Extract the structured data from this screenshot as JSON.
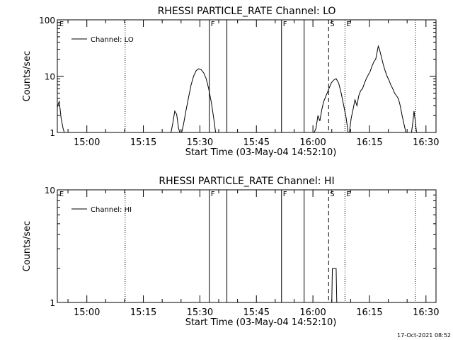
{
  "timestamp": "17-Oct-2021 08:52",
  "chart_data": [
    {
      "type": "line",
      "title": "RHESSI PARTICLE_RATE Channel: LO",
      "xlabel": "Start Time (03-May-04 14:52:10)",
      "ylabel": "Counts/sec",
      "y_scale": "log",
      "ylim": [
        1,
        100
      ],
      "y_ticks": [
        {
          "v": 1,
          "label": "1"
        },
        {
          "v": 10,
          "label": "10"
        },
        {
          "v": 100,
          "label": "100"
        }
      ],
      "xlim": [
        "14:52:10",
        "16:32:40"
      ],
      "x_ticks": [
        "15:00",
        "15:15",
        "15:30",
        "15:45",
        "16:00",
        "16:15",
        "16:30"
      ],
      "grid": false,
      "legend": {
        "position": "top-left",
        "entries": [
          "Channel: LO"
        ]
      },
      "markers": [
        {
          "time": "14:52:20",
          "label": "E",
          "style": "none"
        },
        {
          "time": "15:10:10",
          "label": "",
          "style": "dotted"
        },
        {
          "time": "15:32:30",
          "label": "F",
          "style": "solid"
        },
        {
          "time": "15:37:10",
          "label": "",
          "style": "solid"
        },
        {
          "time": "15:51:40",
          "label": "F",
          "style": "solid"
        },
        {
          "time": "15:57:40",
          "label": "",
          "style": "solid"
        },
        {
          "time": "16:04:10",
          "label": "S",
          "style": "dashed"
        },
        {
          "time": "16:08:30",
          "label": "E",
          "style": "dotted"
        },
        {
          "time": "16:27:10",
          "label": "",
          "style": "dotted"
        }
      ],
      "series": [
        {
          "name": "Channel: LO",
          "segments": [
            [
              [
                "14:52:10",
                2.8
              ],
              [
                "14:52:40",
                3.6
              ],
              [
                "14:53:10",
                1.8
              ],
              [
                "14:53:40",
                1.2
              ],
              [
                "14:54:00",
                1.0
              ]
            ],
            [
              [
                "15:22:20",
                1.0
              ],
              [
                "15:22:50",
                1.5
              ],
              [
                "15:23:20",
                2.4
              ],
              [
                "15:23:50",
                2.1
              ],
              [
                "15:24:20",
                1.2
              ],
              [
                "15:24:40",
                1.0
              ]
            ],
            [
              [
                "15:25:10",
                1.0
              ],
              [
                "15:25:40",
                1.4
              ],
              [
                "15:26:20",
                2.5
              ],
              [
                "15:27:00",
                4.2
              ],
              [
                "15:27:40",
                7.0
              ],
              [
                "15:28:20",
                10.0
              ],
              [
                "15:29:00",
                12.5
              ],
              [
                "15:29:40",
                13.5
              ],
              [
                "15:30:20",
                13.0
              ],
              [
                "15:31:00",
                11.5
              ],
              [
                "15:31:40",
                9.0
              ],
              [
                "15:32:20",
                6.0
              ],
              [
                "15:33:00",
                3.5
              ],
              [
                "15:33:40",
                1.8
              ],
              [
                "15:34:10",
                1.0
              ]
            ],
            [
              [
                "16:00:20",
                1.0
              ],
              [
                "16:00:50",
                1.2
              ],
              [
                "16:01:20",
                2.0
              ],
              [
                "16:01:50",
                1.6
              ],
              [
                "16:02:20",
                2.5
              ],
              [
                "16:02:50",
                3.5
              ],
              [
                "16:03:30",
                4.5
              ],
              [
                "16:04:10",
                5.8
              ],
              [
                "16:04:50",
                7.5
              ],
              [
                "16:05:30",
                8.5
              ],
              [
                "16:06:10",
                9.0
              ],
              [
                "16:06:50",
                7.5
              ],
              [
                "16:07:30",
                5.0
              ],
              [
                "16:08:10",
                3.0
              ],
              [
                "16:08:50",
                1.8
              ],
              [
                "16:09:20",
                1.0
              ]
            ],
            [
              [
                "16:09:40",
                1.0
              ],
              [
                "16:10:10",
                1.8
              ],
              [
                "16:10:40",
                2.6
              ],
              [
                "16:11:10",
                3.8
              ],
              [
                "16:11:40",
                3.0
              ],
              [
                "16:12:10",
                4.5
              ],
              [
                "16:12:40",
                5.5
              ],
              [
                "16:13:10",
                6.0
              ],
              [
                "16:13:40",
                7.5
              ],
              [
                "16:14:10",
                9.0
              ],
              [
                "16:14:40",
                10.5
              ],
              [
                "16:15:10",
                12.0
              ],
              [
                "16:15:40",
                15.0
              ],
              [
                "16:16:10",
                18.0
              ],
              [
                "16:16:40",
                20.0
              ],
              [
                "16:17:00",
                26.0
              ],
              [
                "16:17:20",
                34.0
              ],
              [
                "16:17:40",
                30.0
              ],
              [
                "16:18:10",
                22.0
              ],
              [
                "16:18:40",
                16.0
              ],
              [
                "16:19:10",
                12.5
              ],
              [
                "16:19:40",
                10.0
              ],
              [
                "16:20:10",
                8.5
              ],
              [
                "16:20:40",
                7.0
              ],
              [
                "16:21:10",
                6.0
              ],
              [
                "16:21:40",
                5.0
              ],
              [
                "16:22:10",
                4.5
              ],
              [
                "16:22:40",
                4.0
              ],
              [
                "16:23:10",
                3.0
              ],
              [
                "16:23:40",
                2.0
              ],
              [
                "16:24:10",
                1.4
              ],
              [
                "16:24:40",
                1.0
              ]
            ],
            [
              [
                "16:26:10",
                1.0
              ],
              [
                "16:26:30",
                1.5
              ],
              [
                "16:26:50",
                2.4
              ],
              [
                "16:27:10",
                1.6
              ],
              [
                "16:27:30",
                1.0
              ]
            ]
          ]
        }
      ]
    },
    {
      "type": "line",
      "title": "RHESSI PARTICLE_RATE Channel: HI",
      "xlabel": "Start Time (03-May-04 14:52:10)",
      "ylabel": "Counts/sec",
      "y_scale": "log",
      "ylim": [
        1,
        10
      ],
      "y_ticks": [
        {
          "v": 1,
          "label": "1"
        },
        {
          "v": 10,
          "label": "10"
        }
      ],
      "xlim": [
        "14:52:10",
        "16:32:40"
      ],
      "x_ticks": [
        "15:00",
        "15:15",
        "15:30",
        "15:45",
        "16:00",
        "16:15",
        "16:30"
      ],
      "grid": false,
      "legend": {
        "position": "top-left",
        "entries": [
          "Channel: HI"
        ]
      },
      "markers": [
        {
          "time": "14:52:20",
          "label": "E",
          "style": "none"
        },
        {
          "time": "15:10:10",
          "label": "",
          "style": "dotted"
        },
        {
          "time": "15:32:30",
          "label": "F",
          "style": "solid"
        },
        {
          "time": "15:37:10",
          "label": "",
          "style": "solid"
        },
        {
          "time": "15:51:40",
          "label": "F",
          "style": "solid"
        },
        {
          "time": "15:57:40",
          "label": "",
          "style": "solid"
        },
        {
          "time": "16:04:10",
          "label": "S",
          "style": "dashed"
        },
        {
          "time": "16:08:30",
          "label": "E",
          "style": "dotted"
        },
        {
          "time": "16:27:10",
          "label": "",
          "style": "dotted"
        }
      ],
      "series": [
        {
          "name": "Channel: HI",
          "segments": [
            [
              [
                "16:05:00",
                1.0
              ],
              [
                "16:05:10",
                2.0
              ],
              [
                "16:06:10",
                2.0
              ],
              [
                "16:06:20",
                1.0
              ]
            ]
          ]
        }
      ]
    }
  ]
}
